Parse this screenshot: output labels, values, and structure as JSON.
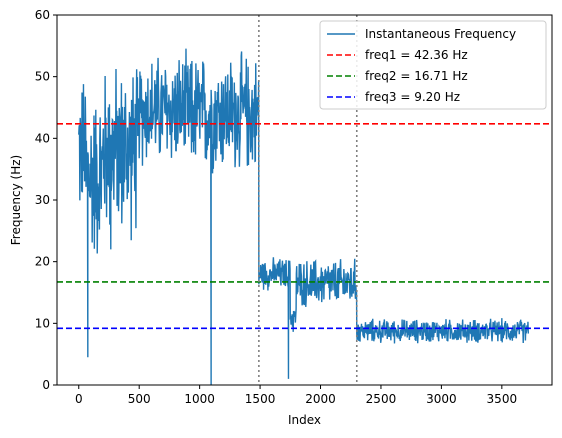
{
  "chart_data": {
    "type": "line",
    "title": "",
    "xlabel": "Index",
    "ylabel": "Frequency (Hz)",
    "xlim": [
      -180,
      3915
    ],
    "ylim": [
      0,
      60
    ],
    "xticks": [
      0,
      500,
      1000,
      1500,
      2000,
      2500,
      3000,
      3500
    ],
    "yticks": [
      0,
      10,
      20,
      30,
      40,
      50,
      60
    ],
    "xtick_labels": [
      "0",
      "500",
      "1000",
      "1500",
      "2000",
      "2500",
      "3000",
      "3500"
    ],
    "ytick_labels": [
      "0",
      "10",
      "20",
      "30",
      "40",
      "50",
      "60"
    ],
    "grid": false,
    "legend_position": "upper right",
    "series": [
      {
        "name": "Instantaneous Frequency",
        "color": "#1f77b4",
        "segments": [
          {
            "x_start": 0,
            "x_end": 60,
            "low": 24.5,
            "high": 52
          },
          {
            "x_start": 60,
            "x_end": 200,
            "low": 18,
            "high": 50
          },
          {
            "x_start": 200,
            "x_end": 500,
            "low": 22,
            "high": 54
          },
          {
            "x_start": 500,
            "x_end": 900,
            "low": 34,
            "high": 55
          },
          {
            "x_start": 900,
            "x_end": 1490,
            "low": 33,
            "high": 55
          },
          {
            "x_start": 1490,
            "x_end": 1750,
            "low": 15,
            "high": 21
          },
          {
            "x_start": 1750,
            "x_end": 1800,
            "low": 8,
            "high": 14
          },
          {
            "x_start": 1800,
            "x_end": 2300,
            "low": 12,
            "high": 21
          },
          {
            "x_start": 2300,
            "x_end": 3720,
            "low": 6.5,
            "high": 11
          }
        ],
        "spikes": [
          {
            "x": 75,
            "y": 4.5
          },
          {
            "x": 265,
            "y": 22
          },
          {
            "x": 1095,
            "y": 0
          },
          {
            "x": 1735,
            "y": 1
          }
        ]
      }
    ],
    "reference_lines": [
      {
        "label": "freq1 = 42.36 Hz",
        "orientation": "horizontal",
        "value": 42.36,
        "color": "#ff0000",
        "style": "dashed"
      },
      {
        "label": "freq2 = 16.71 Hz",
        "orientation": "horizontal",
        "value": 16.71,
        "color": "#008000",
        "style": "dashed"
      },
      {
        "label": "freq3 = 9.20 Hz",
        "orientation": "horizontal",
        "value": 9.2,
        "color": "#0000ff",
        "style": "dashed"
      },
      {
        "label": "",
        "orientation": "vertical",
        "value": 1490,
        "color": "#808080",
        "style": "dotted"
      },
      {
        "label": "",
        "orientation": "vertical",
        "value": 2300,
        "color": "#808080",
        "style": "dotted"
      }
    ]
  }
}
